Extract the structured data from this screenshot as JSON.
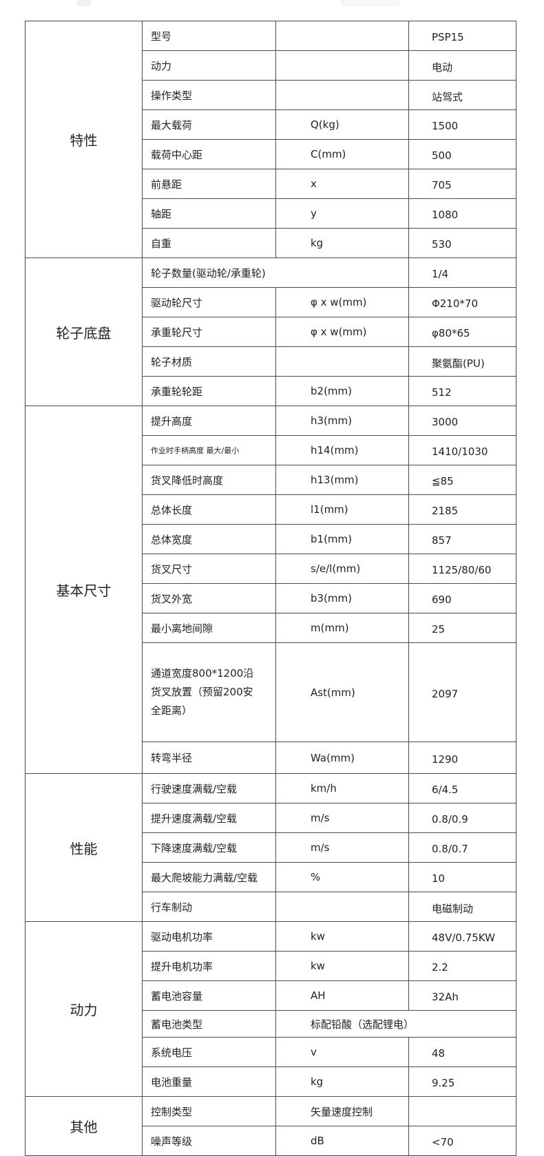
{
  "spec_table": {
    "sections": [
      {
        "label": "特性",
        "rows": [
          {
            "name": "型号",
            "symbol": "",
            "value": "PSP15"
          },
          {
            "name": "动力",
            "symbol": "",
            "value": "电动"
          },
          {
            "name": "操作类型",
            "symbol": "",
            "value": "站驾式"
          },
          {
            "name": "最大载荷",
            "symbol": "Q(kg)",
            "value": "1500"
          },
          {
            "name": "载荷中心距",
            "symbol": "C(mm)",
            "value": "500"
          },
          {
            "name": "前悬距",
            "symbol": "x",
            "value": "705"
          },
          {
            "name": "轴距",
            "symbol": "y",
            "value": "1080"
          },
          {
            "name": "自重",
            "symbol": "kg",
            "value": "530"
          }
        ]
      },
      {
        "label": "轮子底盘",
        "rows": [
          {
            "name": "轮子数量(驱动轮/承重轮)",
            "value": "1/4",
            "span": "name"
          },
          {
            "name": "驱动轮尺寸",
            "symbol": "φ x w(mm)",
            "value": "Φ210*70"
          },
          {
            "name": "承重轮尺寸",
            "symbol": "φ x w(mm)",
            "value": "φ80*65"
          },
          {
            "name": "轮子材质",
            "symbol": "",
            "value": "聚氨酯(PU)"
          },
          {
            "name": "承重轮轮距",
            "symbol": "b2(mm)",
            "value": "512"
          }
        ]
      },
      {
        "label": "基本尺寸",
        "rows": [
          {
            "name": "提升高度",
            "symbol": "h3(mm)",
            "value": "3000"
          },
          {
            "name": "作业时手柄高度  最大/最小",
            "symbol": "h14(mm)",
            "value": "1410/1030",
            "small": true
          },
          {
            "name": "货叉降低时高度",
            "symbol": "h13(mm)",
            "value": "≦85"
          },
          {
            "name": "总体长度",
            "symbol": "l1(mm)",
            "value": "2185"
          },
          {
            "name": "总体宽度",
            "symbol": "b1(mm)",
            "value": "857"
          },
          {
            "name": "货叉尺寸",
            "symbol": "s/e/l(mm)",
            "value": "1125/80/60"
          },
          {
            "name": "货叉外宽",
            "symbol": "b3(mm)",
            "value": "690"
          },
          {
            "name": "最小离地间隙",
            "symbol": "m(mm)",
            "value": "25"
          },
          {
            "name": "通道宽度800*1200沿货叉放置（预留200安全距离）",
            "symbol": "Ast(mm)",
            "value": "2097",
            "tall": true
          },
          {
            "name": "转弯半径",
            "symbol": "Wa(mm)",
            "value": "1290",
            "last": true
          }
        ]
      },
      {
        "label": "性能",
        "rows": [
          {
            "name": "行驶速度满载/空载",
            "symbol": "km/h",
            "value": "6/4.5"
          },
          {
            "name": "提升速度满载/空载",
            "symbol": "m/s",
            "value": "0.8/0.9"
          },
          {
            "name": "下降速度满载/空载",
            "symbol": "m/s",
            "value": "0.8/0.7"
          },
          {
            "name": "最大爬坡能力满载/空载",
            "symbol": "%",
            "value": "10"
          },
          {
            "name": "行车制动",
            "symbol": "",
            "value": "电磁制动"
          }
        ]
      },
      {
        "label": "动力",
        "rows": [
          {
            "name": "驱动电机功率",
            "symbol": "kw",
            "value": "48V/0.75KW"
          },
          {
            "name": "提升电机功率",
            "symbol": "kw",
            "value": "2.2"
          },
          {
            "name": "蓄电池容量",
            "symbol": "AH",
            "value": "32Ah"
          },
          {
            "name": "蓄电池类型",
            "symbol": "标配铅酸（选配锂电）",
            "span": "symbol"
          },
          {
            "name": "系统电压",
            "symbol": "v",
            "value": "48"
          },
          {
            "name": "电池重量",
            "symbol": "kg",
            "value": "9.25"
          }
        ]
      },
      {
        "label": "其他",
        "rows": [
          {
            "name": "控制类型",
            "symbol": "矢量速度控制",
            "value": ""
          },
          {
            "name": "噪声等级",
            "symbol": "dB",
            "value": "<70"
          }
        ]
      }
    ]
  }
}
